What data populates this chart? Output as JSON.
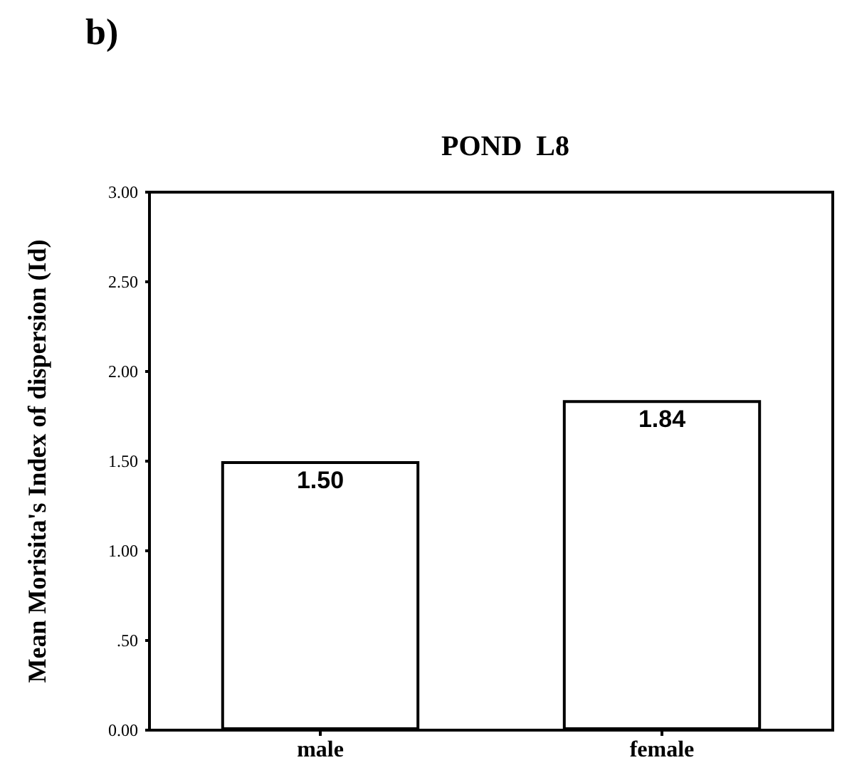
{
  "chart_data": {
    "type": "bar",
    "title": "POND  L8",
    "ylabel": "Mean Morisita's Index of dispersion (Id)",
    "annotations": [
      "b)"
    ],
    "categories": [
      "male",
      "female"
    ],
    "values": [
      1.5,
      1.84
    ],
    "value_labels": [
      "1.50",
      "1.84"
    ],
    "color": "#ffffff",
    "ylim": [
      0,
      3
    ],
    "yticks": [
      {
        "value": 0,
        "label": "0.00"
      },
      {
        "value": 0.5,
        "label": ".50"
      },
      {
        "value": 1,
        "label": "1.00"
      },
      {
        "value": 1.5,
        "label": "1.50"
      },
      {
        "value": 2,
        "label": "2.00"
      },
      {
        "value": 2.5,
        "label": "2.50"
      },
      {
        "value": 3,
        "label": "3.00"
      }
    ],
    "grid": false
  }
}
